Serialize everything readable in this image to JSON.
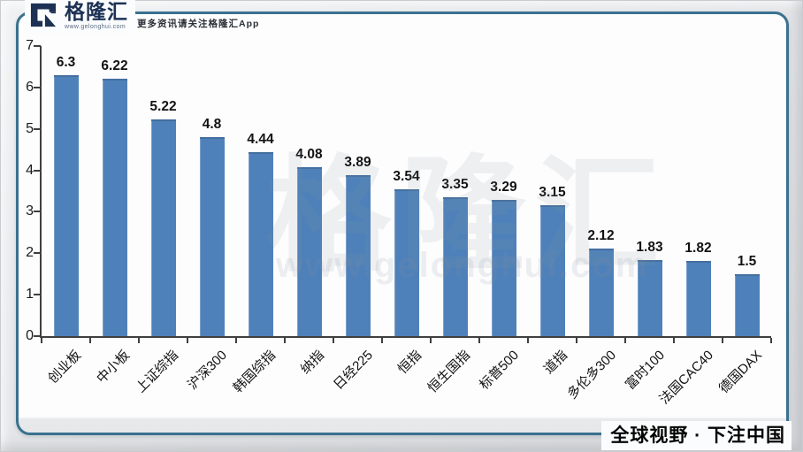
{
  "header": {
    "logo_text": "格隆汇",
    "logo_url": "www.gelonghui.com",
    "tagline": "更多资讯请关注格隆汇App"
  },
  "watermark": {
    "text": "格隆汇",
    "url": "www.gelonghui.com"
  },
  "footer": {
    "slogan": "全球视野 · 下注中国"
  },
  "colors": {
    "bar": "#4e81ba",
    "frame_border": "#3a7190",
    "axis": "#3f3f3f",
    "logo": "#1d3154"
  },
  "chart_data": {
    "type": "bar",
    "title": "",
    "xlabel": "",
    "ylabel": "",
    "categories": [
      "创业板",
      "中小板",
      "上证综指",
      "沪深300",
      "韩国综指",
      "纳指",
      "日经225",
      "恒指",
      "恒生国指",
      "标普500",
      "道指",
      "多伦多300",
      "富时100",
      "法国CAC40",
      "德国DAX"
    ],
    "values": [
      6.3,
      6.22,
      5.22,
      4.8,
      4.44,
      4.08,
      3.89,
      3.54,
      3.35,
      3.29,
      3.15,
      2.12,
      1.83,
      1.82,
      1.5
    ],
    "ylim": [
      0,
      7
    ],
    "yticks": [
      0,
      1,
      2,
      3,
      4,
      5,
      6,
      7
    ],
    "grid": false,
    "legend": false,
    "data_labels": true
  }
}
